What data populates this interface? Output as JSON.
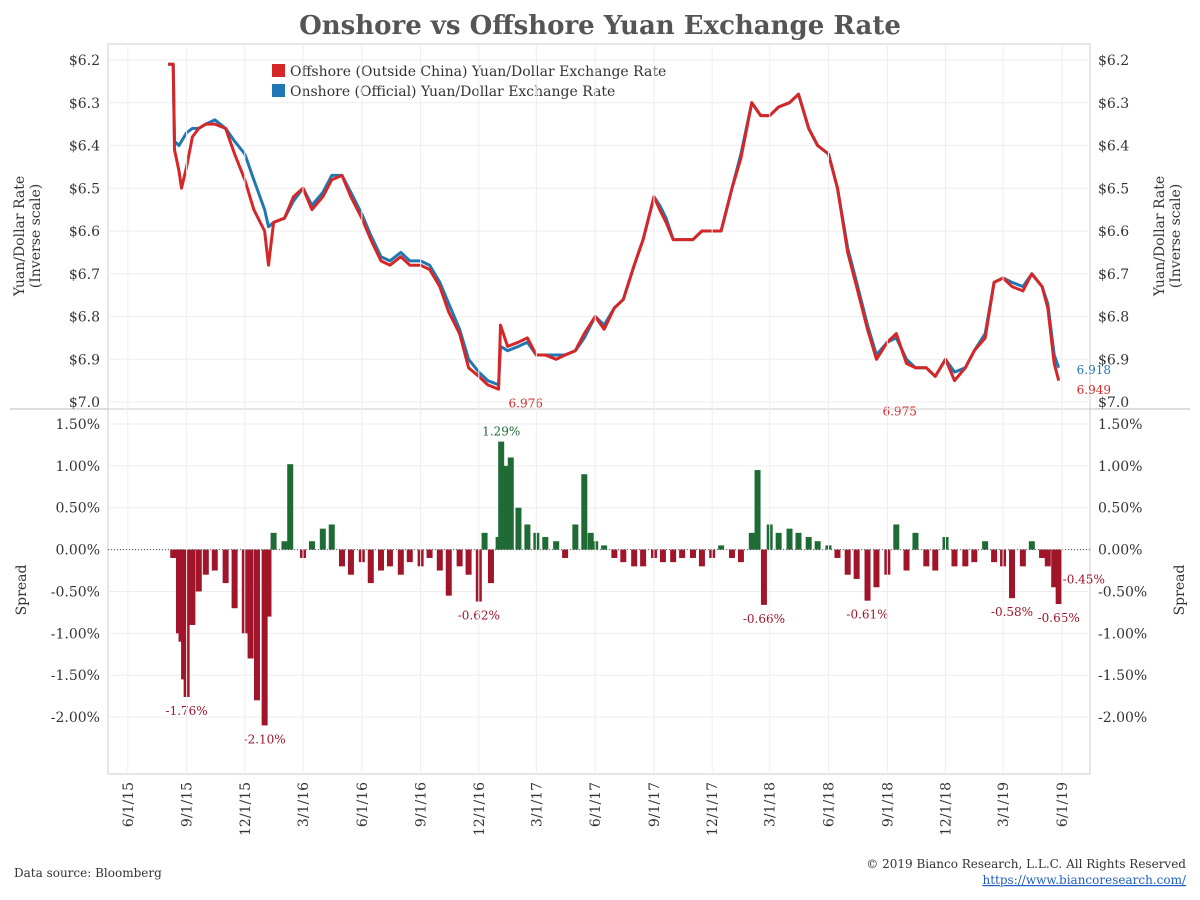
{
  "title": "Onshore vs Offshore Yuan Exchange Rate",
  "colors": {
    "offshore": "#d62728",
    "onshore": "#1f77b4",
    "positive": "#1e6b35",
    "negative": "#a0152a",
    "annot_blue": "#1f77b4"
  },
  "footer": {
    "source": "Data source: Bloomberg",
    "copyright": "© 2019 Bianco Research, L.L.C. All Rights Reserved",
    "url": "https://www.biancoresearch.com/"
  },
  "chart_data": [
    {
      "type": "line",
      "ylabel": "Yuan/Dollar Rate\n(Inverse scale)",
      "y_inverted": true,
      "ylim": [
        6.2,
        7.0
      ],
      "y_ticks": [
        6.2,
        6.3,
        6.4,
        6.5,
        6.6,
        6.7,
        6.8,
        6.9,
        7.0
      ],
      "y_tick_labels": [
        "$6.2",
        "$6.3",
        "$6.4",
        "$6.5",
        "$6.6",
        "$6.7",
        "$6.8",
        "$6.9",
        "$7.0"
      ],
      "legend": [
        "Offshore (Outside China) Yuan/Dollar Exchange Rate",
        "Onshore (Official) Yuan/Dollar Exchange Rate"
      ],
      "legend_position": "top-center",
      "series": [
        {
          "name": "Offshore (Outside China) Yuan/Dollar Exchange Rate",
          "color": "#d62728",
          "x": [
            "2015-08-03",
            "2015-08-11",
            "2015-08-13",
            "2015-08-20",
            "2015-08-24",
            "2015-09-01",
            "2015-09-10",
            "2015-09-20",
            "2015-10-01",
            "2015-10-15",
            "2015-11-01",
            "2015-11-15",
            "2015-12-01",
            "2015-12-15",
            "2016-01-01",
            "2016-01-07",
            "2016-01-15",
            "2016-02-01",
            "2016-02-15",
            "2016-03-01",
            "2016-03-15",
            "2016-04-01",
            "2016-04-15",
            "2016-05-01",
            "2016-05-15",
            "2016-06-01",
            "2016-06-15",
            "2016-07-01",
            "2016-07-15",
            "2016-08-01",
            "2016-08-15",
            "2016-09-01",
            "2016-09-15",
            "2016-10-01",
            "2016-10-15",
            "2016-11-01",
            "2016-11-15",
            "2016-12-01",
            "2016-12-15",
            "2017-01-01",
            "2017-01-04",
            "2017-01-15",
            "2017-02-01",
            "2017-02-15",
            "2017-03-01",
            "2017-03-15",
            "2017-04-01",
            "2017-04-15",
            "2017-05-01",
            "2017-05-15",
            "2017-06-01",
            "2017-06-15",
            "2017-07-01",
            "2017-07-15",
            "2017-08-01",
            "2017-08-15",
            "2017-09-01",
            "2017-09-10",
            "2017-09-20",
            "2017-10-01",
            "2017-10-15",
            "2017-11-01",
            "2017-11-15",
            "2017-12-01",
            "2017-12-15",
            "2018-01-01",
            "2018-01-15",
            "2018-02-01",
            "2018-02-15",
            "2018-03-01",
            "2018-03-15",
            "2018-04-01",
            "2018-04-15",
            "2018-05-01",
            "2018-05-15",
            "2018-06-01",
            "2018-06-15",
            "2018-07-01",
            "2018-07-15",
            "2018-08-01",
            "2018-08-15",
            "2018-09-01",
            "2018-09-15",
            "2018-10-01",
            "2018-10-15",
            "2018-11-01",
            "2018-11-15",
            "2018-12-01",
            "2018-12-15",
            "2019-01-01",
            "2019-01-15",
            "2019-02-01",
            "2019-02-15",
            "2019-03-01",
            "2019-03-15",
            "2019-04-01",
            "2019-04-15",
            "2019-05-01",
            "2019-05-10",
            "2019-05-20",
            "2019-05-27"
          ],
          "values": [
            6.21,
            6.21,
            6.41,
            6.46,
            6.5,
            6.45,
            6.38,
            6.36,
            6.35,
            6.35,
            6.36,
            6.42,
            6.48,
            6.55,
            6.6,
            6.68,
            6.58,
            6.57,
            6.52,
            6.5,
            6.55,
            6.52,
            6.48,
            6.47,
            6.52,
            6.57,
            6.62,
            6.67,
            6.68,
            6.66,
            6.68,
            6.68,
            6.69,
            6.73,
            6.79,
            6.84,
            6.92,
            6.94,
            6.96,
            6.97,
            6.82,
            6.87,
            6.86,
            6.85,
            6.89,
            6.89,
            6.9,
            6.89,
            6.88,
            6.84,
            6.8,
            6.83,
            6.78,
            6.76,
            6.68,
            6.62,
            6.52,
            6.55,
            6.58,
            6.62,
            6.62,
            6.62,
            6.6,
            6.6,
            6.6,
            6.5,
            6.43,
            6.3,
            6.33,
            6.33,
            6.31,
            6.3,
            6.28,
            6.36,
            6.4,
            6.42,
            6.5,
            6.65,
            6.73,
            6.83,
            6.9,
            6.86,
            6.84,
            6.91,
            6.92,
            6.92,
            6.94,
            6.9,
            6.95,
            6.92,
            6.88,
            6.85,
            6.72,
            6.71,
            6.73,
            6.74,
            6.7,
            6.73,
            6.78,
            6.91,
            6.95
          ]
        },
        {
          "name": "Onshore (Official) Yuan/Dollar Exchange Rate",
          "color": "#1f77b4",
          "x": [
            "2015-08-03",
            "2015-08-11",
            "2015-08-13",
            "2015-08-20",
            "2015-08-24",
            "2015-09-01",
            "2015-09-10",
            "2015-09-20",
            "2015-10-01",
            "2015-10-15",
            "2015-11-01",
            "2015-11-15",
            "2015-12-01",
            "2015-12-15",
            "2016-01-01",
            "2016-01-07",
            "2016-01-15",
            "2016-02-01",
            "2016-02-15",
            "2016-03-01",
            "2016-03-15",
            "2016-04-01",
            "2016-04-15",
            "2016-05-01",
            "2016-05-15",
            "2016-06-01",
            "2016-06-15",
            "2016-07-01",
            "2016-07-15",
            "2016-08-01",
            "2016-08-15",
            "2016-09-01",
            "2016-09-15",
            "2016-10-01",
            "2016-10-15",
            "2016-11-01",
            "2016-11-15",
            "2016-12-01",
            "2016-12-15",
            "2017-01-01",
            "2017-01-04",
            "2017-01-15",
            "2017-02-01",
            "2017-02-15",
            "2017-03-01",
            "2017-03-15",
            "2017-04-01",
            "2017-04-15",
            "2017-05-01",
            "2017-05-15",
            "2017-06-01",
            "2017-06-15",
            "2017-07-01",
            "2017-07-15",
            "2017-08-01",
            "2017-08-15",
            "2017-09-01",
            "2017-09-10",
            "2017-09-20",
            "2017-10-01",
            "2017-10-15",
            "2017-11-01",
            "2017-11-15",
            "2017-12-01",
            "2017-12-15",
            "2018-01-01",
            "2018-01-15",
            "2018-02-01",
            "2018-02-15",
            "2018-03-01",
            "2018-03-15",
            "2018-04-01",
            "2018-04-15",
            "2018-05-01",
            "2018-05-15",
            "2018-06-01",
            "2018-06-15",
            "2018-07-01",
            "2018-07-15",
            "2018-08-01",
            "2018-08-15",
            "2018-09-01",
            "2018-09-15",
            "2018-10-01",
            "2018-10-15",
            "2018-11-01",
            "2018-11-15",
            "2018-12-01",
            "2018-12-15",
            "2019-01-01",
            "2019-01-15",
            "2019-02-01",
            "2019-02-15",
            "2019-03-01",
            "2019-03-15",
            "2019-04-01",
            "2019-04-15",
            "2019-05-01",
            "2019-05-10",
            "2019-05-20",
            "2019-05-27"
          ],
          "values": [
            6.21,
            6.21,
            6.39,
            6.4,
            6.39,
            6.37,
            6.36,
            6.36,
            6.35,
            6.34,
            6.36,
            6.39,
            6.42,
            6.48,
            6.55,
            6.59,
            6.58,
            6.57,
            6.53,
            6.5,
            6.54,
            6.51,
            6.47,
            6.47,
            6.51,
            6.56,
            6.61,
            6.66,
            6.67,
            6.65,
            6.67,
            6.67,
            6.68,
            6.72,
            6.77,
            6.83,
            6.9,
            6.93,
            6.95,
            6.96,
            6.87,
            6.88,
            6.87,
            6.86,
            6.89,
            6.89,
            6.89,
            6.89,
            6.88,
            6.85,
            6.8,
            6.82,
            6.78,
            6.76,
            6.68,
            6.62,
            6.52,
            6.54,
            6.57,
            6.62,
            6.62,
            6.62,
            6.6,
            6.6,
            6.6,
            6.5,
            6.42,
            6.3,
            6.33,
            6.33,
            6.31,
            6.3,
            6.28,
            6.36,
            6.4,
            6.42,
            6.5,
            6.64,
            6.72,
            6.82,
            6.89,
            6.86,
            6.85,
            6.9,
            6.92,
            6.92,
            6.94,
            6.9,
            6.93,
            6.92,
            6.88,
            6.84,
            6.72,
            6.71,
            6.72,
            6.73,
            6.7,
            6.73,
            6.77,
            6.89,
            6.92
          ]
        }
      ],
      "annotations": [
        {
          "x": "2017-01-04",
          "y": 6.976,
          "text": "6.976",
          "series": "offshore"
        },
        {
          "x": "2018-10-25",
          "y": 6.975,
          "text": "6.975",
          "series": "offshore"
        },
        {
          "x": "2019-05-27",
          "y": 6.918,
          "text": "6.918",
          "series": "onshore"
        },
        {
          "x": "2019-05-27",
          "y": 6.949,
          "text": "6.949",
          "series": "offshore"
        }
      ]
    },
    {
      "type": "bar",
      "ylabel": "Spread",
      "ylim": [
        -2.25,
        1.5
      ],
      "y_ticks": [
        1.5,
        1.0,
        0.5,
        0.0,
        -0.5,
        -1.0,
        -1.5,
        -2.0
      ],
      "y_tick_labels": [
        "1.50%",
        "1.00%",
        "0.50%",
        "0.00%",
        "-0.50%",
        "-1.00%",
        "-1.50%",
        "-2.00%"
      ],
      "x": [
        "2015-08-11",
        "2015-08-20",
        "2015-08-24",
        "2015-08-28",
        "2015-09-01",
        "2015-09-10",
        "2015-09-20",
        "2015-10-01",
        "2015-10-15",
        "2015-11-01",
        "2015-11-15",
        "2015-12-01",
        "2015-12-10",
        "2015-12-20",
        "2016-01-01",
        "2016-01-07",
        "2016-01-15",
        "2016-02-01",
        "2016-02-10",
        "2016-03-01",
        "2016-03-15",
        "2016-04-01",
        "2016-04-15",
        "2016-05-01",
        "2016-05-15",
        "2016-06-01",
        "2016-06-15",
        "2016-07-01",
        "2016-07-15",
        "2016-08-01",
        "2016-08-15",
        "2016-09-01",
        "2016-09-15",
        "2016-10-01",
        "2016-10-15",
        "2016-11-01",
        "2016-11-15",
        "2016-12-01",
        "2016-12-10",
        "2016-12-20",
        "2017-01-01",
        "2017-01-05",
        "2017-01-12",
        "2017-01-20",
        "2017-02-01",
        "2017-02-15",
        "2017-03-01",
        "2017-03-15",
        "2017-04-01",
        "2017-04-15",
        "2017-05-01",
        "2017-05-15",
        "2017-05-25",
        "2017-06-01",
        "2017-06-15",
        "2017-07-01",
        "2017-07-15",
        "2017-08-01",
        "2017-08-15",
        "2017-09-01",
        "2017-09-15",
        "2017-10-01",
        "2017-10-15",
        "2017-11-01",
        "2017-11-15",
        "2017-12-01",
        "2017-12-15",
        "2018-01-01",
        "2018-01-15",
        "2018-02-01",
        "2018-02-10",
        "2018-02-20",
        "2018-03-01",
        "2018-03-15",
        "2018-04-01",
        "2018-04-15",
        "2018-05-01",
        "2018-05-15",
        "2018-06-01",
        "2018-06-15",
        "2018-07-01",
        "2018-07-15",
        "2018-08-01",
        "2018-08-15",
        "2018-09-01",
        "2018-09-15",
        "2018-10-01",
        "2018-10-15",
        "2018-11-01",
        "2018-11-15",
        "2018-12-01",
        "2018-12-15",
        "2019-01-01",
        "2019-01-15",
        "2019-02-01",
        "2019-02-15",
        "2019-03-01",
        "2019-03-15",
        "2019-04-01",
        "2019-04-15",
        "2019-05-01",
        "2019-05-10",
        "2019-05-20",
        "2019-05-27"
      ],
      "values": [
        -0.1,
        -1.0,
        -1.1,
        -1.55,
        -1.76,
        -0.9,
        -0.5,
        -0.3,
        -0.25,
        -0.4,
        -0.7,
        -1.0,
        -1.3,
        -1.8,
        -2.1,
        -0.8,
        0.2,
        0.1,
        1.02,
        -0.1,
        0.1,
        0.25,
        0.3,
        -0.2,
        -0.3,
        -0.15,
        -0.4,
        -0.25,
        -0.2,
        -0.3,
        -0.15,
        -0.2,
        -0.1,
        -0.25,
        -0.55,
        -0.2,
        -0.3,
        -0.62,
        0.2,
        -0.4,
        0.15,
        1.29,
        1.0,
        1.1,
        0.5,
        0.3,
        0.2,
        0.15,
        0.1,
        -0.1,
        0.3,
        0.9,
        0.2,
        0.1,
        0.05,
        -0.1,
        -0.15,
        -0.2,
        -0.2,
        -0.1,
        -0.15,
        -0.15,
        -0.1,
        -0.1,
        -0.2,
        -0.1,
        0.05,
        -0.1,
        -0.15,
        0.2,
        0.95,
        -0.66,
        0.3,
        0.2,
        0.25,
        0.2,
        0.15,
        0.1,
        0.05,
        -0.1,
        -0.3,
        -0.35,
        -0.61,
        -0.45,
        -0.3,
        0.3,
        -0.25,
        0.2,
        -0.2,
        -0.25,
        0.15,
        -0.2,
        -0.2,
        -0.15,
        0.1,
        -0.15,
        -0.2,
        -0.58,
        -0.2,
        0.1,
        -0.1,
        -0.2,
        -0.45,
        -0.65
      ],
      "annotations": [
        {
          "x": "2015-09-01",
          "y": -1.76,
          "text": "-1.76%"
        },
        {
          "x": "2016-01-01",
          "y": -2.1,
          "text": "-2.10%"
        },
        {
          "x": "2016-12-01",
          "y": -0.62,
          "text": "-0.62%"
        },
        {
          "x": "2017-01-05",
          "y": 1.29,
          "text": "1.29%"
        },
        {
          "x": "2018-02-20",
          "y": -0.66,
          "text": "-0.66%"
        },
        {
          "x": "2018-08-01",
          "y": -0.61,
          "text": "-0.61%"
        },
        {
          "x": "2019-03-15",
          "y": -0.58,
          "text": "-0.58%"
        },
        {
          "x": "2019-05-27",
          "y": -0.65,
          "text": "-0.65%"
        },
        {
          "x": "2019-05-27",
          "y": -0.45,
          "text": "-0.45%"
        }
      ],
      "x_ticks": [
        "2015-06-01",
        "2015-09-01",
        "2015-12-01",
        "2016-03-01",
        "2016-06-01",
        "2016-09-01",
        "2016-12-01",
        "2017-03-01",
        "2017-06-01",
        "2017-09-01",
        "2017-12-01",
        "2018-03-01",
        "2018-06-01",
        "2018-09-01",
        "2018-12-01",
        "2019-03-01",
        "2019-06-01"
      ],
      "x_tick_labels": [
        "6/1/15",
        "9/1/15",
        "12/1/15",
        "3/1/16",
        "6/1/16",
        "9/1/16",
        "12/1/16",
        "3/1/17",
        "6/1/17",
        "9/1/17",
        "12/1/17",
        "3/1/18",
        "6/1/18",
        "9/1/18",
        "12/1/18",
        "3/1/19",
        "6/1/19"
      ]
    }
  ]
}
